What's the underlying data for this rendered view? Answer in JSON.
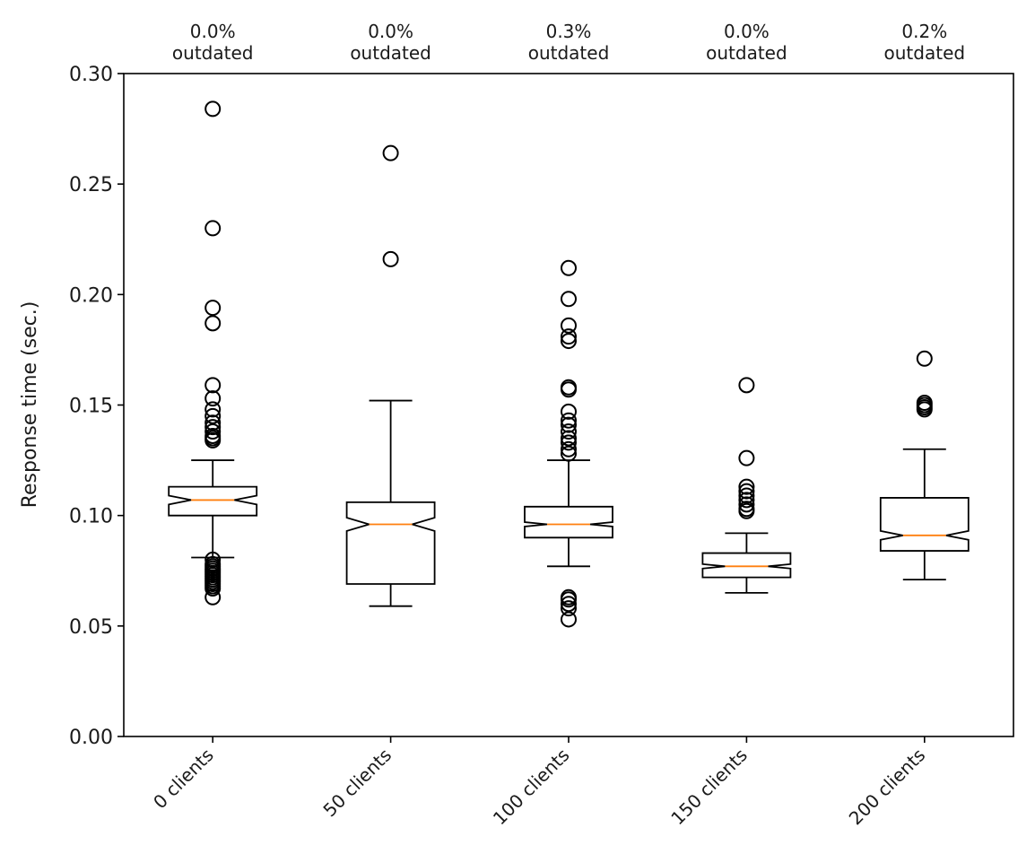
{
  "chart_data": {
    "type": "boxplot",
    "notched": true,
    "categories": [
      "0 clients",
      "50 clients",
      "100 clients",
      "150 clients",
      "200 clients"
    ],
    "top_labels": [
      {
        "pct": "0.0%",
        "text": "outdated"
      },
      {
        "pct": "0.0%",
        "text": "outdated"
      },
      {
        "pct": "0.3%",
        "text": "outdated"
      },
      {
        "pct": "0.0%",
        "text": "outdated"
      },
      {
        "pct": "0.2%",
        "text": "outdated"
      }
    ],
    "ylabel": "Response time (sec.)",
    "xlabel": "",
    "ylim": [
      0.0,
      0.3
    ],
    "yticks": [
      0.0,
      0.05,
      0.1,
      0.15,
      0.2,
      0.25,
      0.3
    ],
    "ytick_labels": [
      "0.00",
      "0.05",
      "0.10",
      "0.15",
      "0.20",
      "0.25",
      "0.30"
    ],
    "box_color": "#000000",
    "median_color": "#ff7f0e",
    "boxes": [
      {
        "whisker_low": 0.081,
        "q1": 0.1,
        "notch_low": 0.105,
        "median": 0.107,
        "notch_high": 0.109,
        "q3": 0.113,
        "whisker_high": 0.125,
        "outliers": [
          0.284,
          0.23,
          0.194,
          0.187,
          0.159,
          0.153,
          0.148,
          0.145,
          0.142,
          0.14,
          0.138,
          0.136,
          0.135,
          0.134,
          0.08,
          0.078,
          0.077,
          0.076,
          0.075,
          0.074,
          0.073,
          0.072,
          0.071,
          0.07,
          0.069,
          0.068,
          0.067,
          0.063
        ]
      },
      {
        "whisker_low": 0.059,
        "q1": 0.069,
        "notch_low": 0.093,
        "median": 0.096,
        "notch_high": 0.099,
        "q3": 0.106,
        "whisker_high": 0.152,
        "outliers": [
          0.264,
          0.216
        ]
      },
      {
        "whisker_low": 0.077,
        "q1": 0.09,
        "notch_low": 0.095,
        "median": 0.096,
        "notch_high": 0.097,
        "q3": 0.104,
        "whisker_high": 0.125,
        "outliers": [
          0.212,
          0.198,
          0.186,
          0.181,
          0.179,
          0.158,
          0.157,
          0.147,
          0.143,
          0.141,
          0.138,
          0.135,
          0.133,
          0.13,
          0.128,
          0.063,
          0.062,
          0.06,
          0.058,
          0.053
        ]
      },
      {
        "whisker_low": 0.065,
        "q1": 0.072,
        "notch_low": 0.076,
        "median": 0.077,
        "notch_high": 0.078,
        "q3": 0.083,
        "whisker_high": 0.092,
        "outliers": [
          0.159,
          0.126,
          0.113,
          0.111,
          0.109,
          0.107,
          0.105,
          0.103,
          0.102
        ]
      },
      {
        "whisker_low": 0.071,
        "q1": 0.084,
        "notch_low": 0.089,
        "median": 0.091,
        "notch_high": 0.093,
        "q3": 0.108,
        "whisker_high": 0.13,
        "outliers": [
          0.171,
          0.151,
          0.15,
          0.149,
          0.148
        ]
      }
    ]
  }
}
